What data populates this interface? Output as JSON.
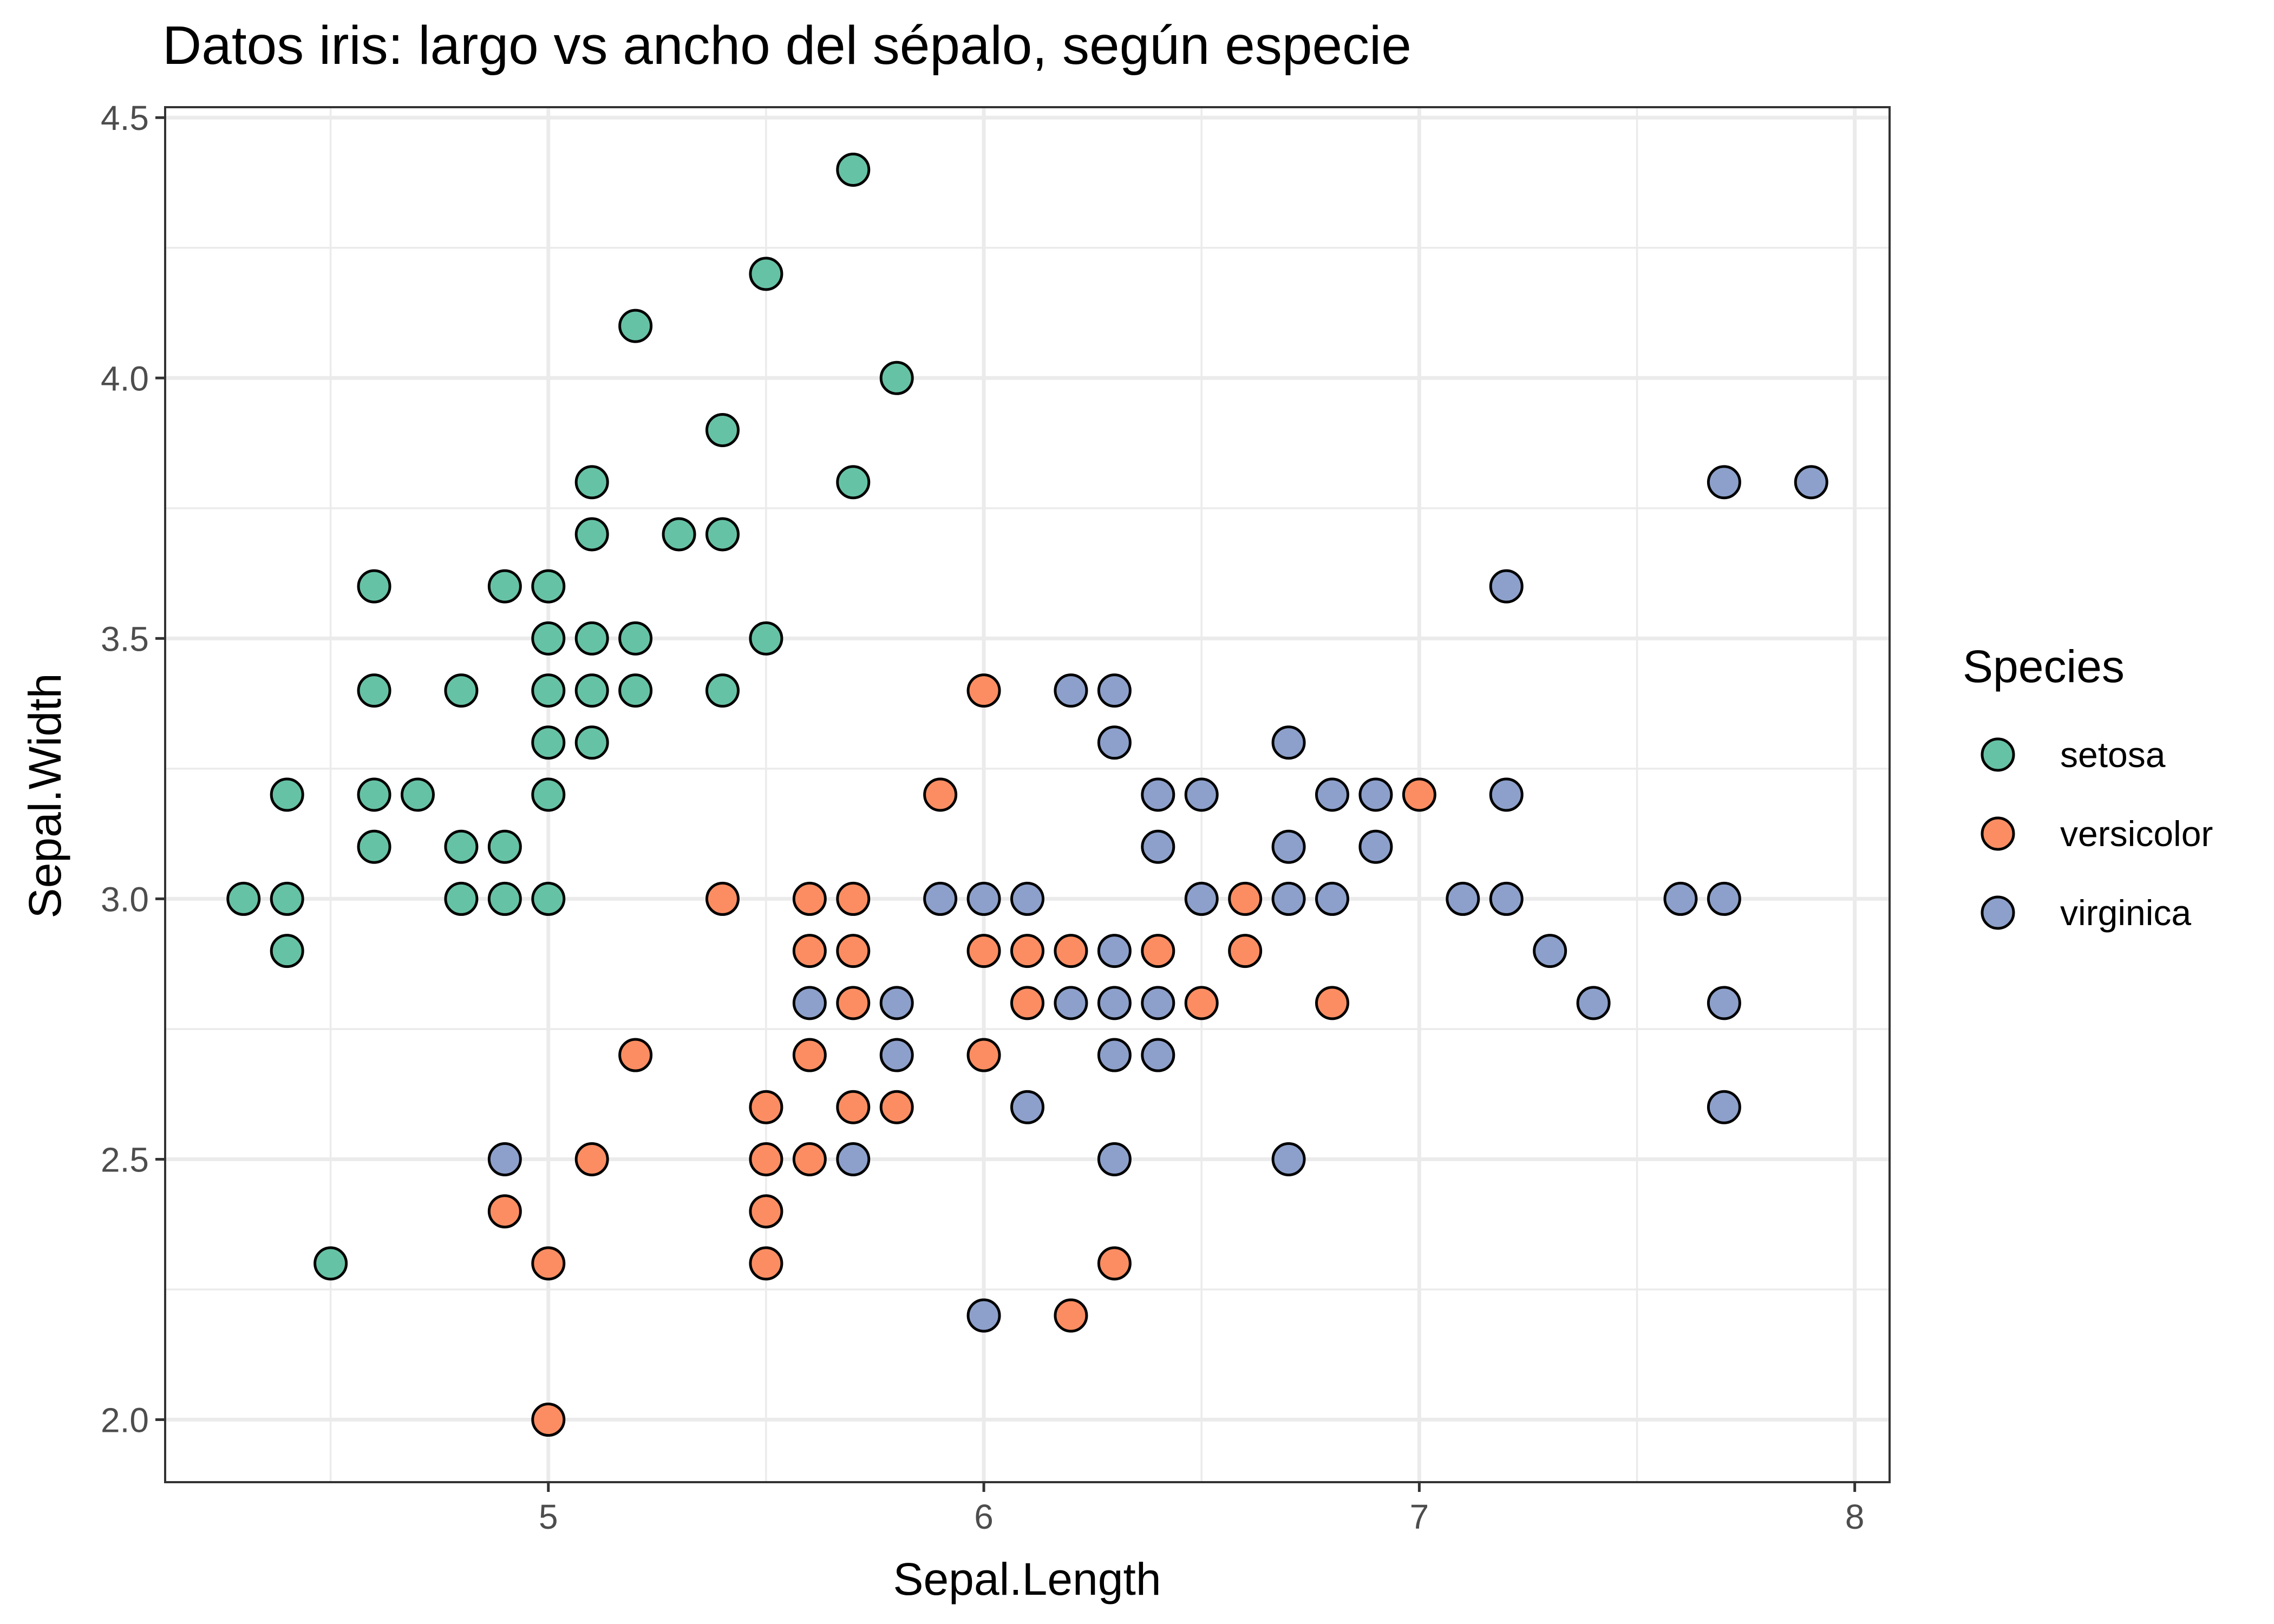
{
  "chart_data": {
    "type": "scatter",
    "title": "Datos iris: largo vs ancho del sépalo, según especie",
    "xlabel": "Sepal.Length",
    "ylabel": "Sepal.Width",
    "xlim": [
      4.12,
      8.08
    ],
    "ylim": [
      1.88,
      4.52
    ],
    "x_ticks": [
      "5",
      "6",
      "7",
      "8"
    ],
    "y_ticks": [
      "2.0",
      "2.5",
      "3.0",
      "3.5",
      "4.0",
      "4.5"
    ],
    "grid": true,
    "legend": {
      "title": "Species",
      "position": "right"
    },
    "series": [
      {
        "name": "setosa",
        "color": "#66C2A5",
        "points": [
          [
            4.3,
            3.0
          ],
          [
            4.4,
            2.9
          ],
          [
            4.4,
            3.0
          ],
          [
            4.4,
            3.2
          ],
          [
            4.5,
            2.3
          ],
          [
            4.6,
            3.1
          ],
          [
            4.6,
            3.2
          ],
          [
            4.6,
            3.4
          ],
          [
            4.6,
            3.6
          ],
          [
            4.7,
            3.2
          ],
          [
            4.8,
            3.0
          ],
          [
            4.8,
            3.1
          ],
          [
            4.8,
            3.4
          ],
          [
            4.9,
            3.0
          ],
          [
            4.9,
            3.1
          ],
          [
            4.9,
            3.6
          ],
          [
            5.0,
            3.0
          ],
          [
            5.0,
            3.2
          ],
          [
            5.0,
            3.3
          ],
          [
            5.0,
            3.4
          ],
          [
            5.0,
            3.5
          ],
          [
            5.0,
            3.6
          ],
          [
            5.1,
            3.3
          ],
          [
            5.1,
            3.4
          ],
          [
            5.1,
            3.5
          ],
          [
            5.1,
            3.7
          ],
          [
            5.1,
            3.8
          ],
          [
            5.2,
            3.4
          ],
          [
            5.2,
            3.5
          ],
          [
            5.2,
            4.1
          ],
          [
            5.3,
            3.7
          ],
          [
            5.4,
            3.4
          ],
          [
            5.4,
            3.7
          ],
          [
            5.4,
            3.9
          ],
          [
            5.5,
            3.5
          ],
          [
            5.5,
            4.2
          ],
          [
            5.7,
            3.8
          ],
          [
            5.7,
            4.4
          ],
          [
            5.8,
            4.0
          ]
        ]
      },
      {
        "name": "versicolor",
        "color": "#FC8D62",
        "points": [
          [
            4.9,
            2.4
          ],
          [
            5.0,
            2.0
          ],
          [
            5.0,
            2.3
          ],
          [
            5.1,
            2.5
          ],
          [
            5.2,
            2.7
          ],
          [
            5.4,
            3.0
          ],
          [
            5.5,
            2.3
          ],
          [
            5.5,
            2.4
          ],
          [
            5.5,
            2.5
          ],
          [
            5.5,
            2.6
          ],
          [
            5.6,
            2.5
          ],
          [
            5.6,
            2.7
          ],
          [
            5.6,
            2.9
          ],
          [
            5.6,
            3.0
          ],
          [
            5.7,
            2.6
          ],
          [
            5.7,
            2.8
          ],
          [
            5.7,
            2.9
          ],
          [
            5.7,
            3.0
          ],
          [
            5.8,
            2.6
          ],
          [
            5.9,
            3.2
          ],
          [
            6.0,
            2.7
          ],
          [
            6.0,
            2.9
          ],
          [
            6.0,
            3.4
          ],
          [
            6.1,
            2.8
          ],
          [
            6.1,
            2.9
          ],
          [
            6.2,
            2.2
          ],
          [
            6.2,
            2.9
          ],
          [
            6.3,
            2.3
          ],
          [
            6.4,
            2.9
          ],
          [
            6.5,
            2.8
          ],
          [
            6.6,
            2.9
          ],
          [
            6.6,
            3.0
          ],
          [
            6.8,
            2.8
          ],
          [
            7.0,
            3.2
          ]
        ]
      },
      {
        "name": "virginica",
        "color": "#8DA0CB",
        "points": [
          [
            4.9,
            2.5
          ],
          [
            5.6,
            2.8
          ],
          [
            5.7,
            2.5
          ],
          [
            5.8,
            2.7
          ],
          [
            5.8,
            2.8
          ],
          [
            5.9,
            3.0
          ],
          [
            6.0,
            2.2
          ],
          [
            6.0,
            3.0
          ],
          [
            6.1,
            2.6
          ],
          [
            6.1,
            3.0
          ],
          [
            6.2,
            2.8
          ],
          [
            6.2,
            3.4
          ],
          [
            6.3,
            2.5
          ],
          [
            6.3,
            2.7
          ],
          [
            6.3,
            2.8
          ],
          [
            6.3,
            2.9
          ],
          [
            6.3,
            3.3
          ],
          [
            6.3,
            3.4
          ],
          [
            6.4,
            2.7
          ],
          [
            6.4,
            2.8
          ],
          [
            6.4,
            3.1
          ],
          [
            6.4,
            3.2
          ],
          [
            6.5,
            3.0
          ],
          [
            6.5,
            3.2
          ],
          [
            6.7,
            2.5
          ],
          [
            6.7,
            3.0
          ],
          [
            6.7,
            3.1
          ],
          [
            6.7,
            3.3
          ],
          [
            6.8,
            3.0
          ],
          [
            6.8,
            3.2
          ],
          [
            6.9,
            3.1
          ],
          [
            6.9,
            3.2
          ],
          [
            7.1,
            3.0
          ],
          [
            7.2,
            3.0
          ],
          [
            7.2,
            3.2
          ],
          [
            7.2,
            3.6
          ],
          [
            7.3,
            2.9
          ],
          [
            7.4,
            2.8
          ],
          [
            7.6,
            3.0
          ],
          [
            7.7,
            2.6
          ],
          [
            7.7,
            2.8
          ],
          [
            7.7,
            3.0
          ],
          [
            7.7,
            3.8
          ],
          [
            7.9,
            3.8
          ]
        ]
      }
    ]
  }
}
